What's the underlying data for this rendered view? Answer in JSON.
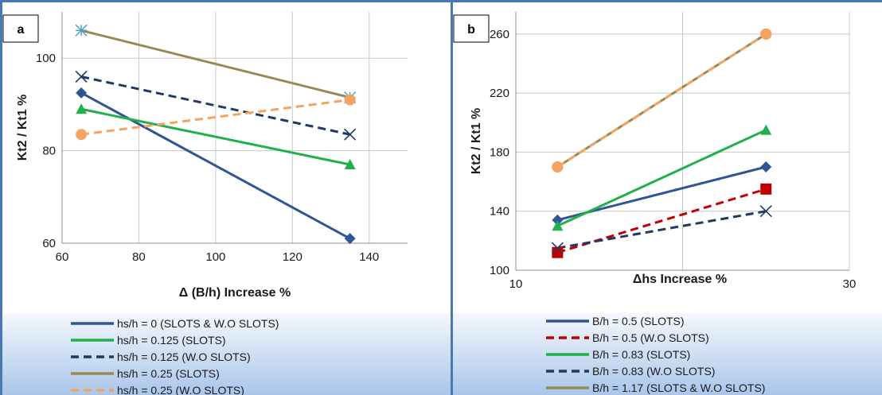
{
  "chart_data": [
    {
      "type": "line",
      "panel_label": "a",
      "xlabel": "Δ (B/h) Increase %",
      "ylabel": "Kt2 / Kt1 %",
      "xlim": [
        60,
        150
      ],
      "ylim": [
        60,
        110
      ],
      "xticks": [
        "60",
        "80",
        "100",
        "120",
        "140"
      ],
      "yticks": [
        "60",
        "80",
        "100"
      ],
      "grid": true,
      "legend_position": "bottom",
      "series": [
        {
          "name": "hs/h = 0 (SLOTS & W.O SLOTS)",
          "color": "#2f5597",
          "dash": "solid",
          "marker": "diamond",
          "x": [
            65,
            135
          ],
          "y": [
            92.5,
            61
          ]
        },
        {
          "name": "hs/h = 0.125 (SLOTS)",
          "color": "#1fb04c",
          "dash": "solid",
          "marker": "triangle",
          "x": [
            65,
            135
          ],
          "y": [
            89,
            77
          ]
        },
        {
          "name": "hs/h = 0.125 (W.O SLOTS)",
          "color": "#1f3864",
          "dash": "dashed",
          "marker": "x",
          "x": [
            65,
            135
          ],
          "y": [
            96,
            83.5
          ]
        },
        {
          "name": "hs/h = 0.25 (SLOTS)",
          "color": "#948a54",
          "dash": "solid",
          "marker": "asterisk",
          "x": [
            65,
            135
          ],
          "y": [
            106,
            91.5
          ]
        },
        {
          "name": "hs/h = 0.25 (W.O SLOTS)",
          "color": "#f4a460",
          "dash": "dashed",
          "marker": "circle",
          "x": [
            65,
            135
          ],
          "y": [
            83.5,
            91
          ]
        }
      ]
    },
    {
      "type": "line",
      "panel_label": "b",
      "xlabel": "Δhs Increase %",
      "ylabel": "Kt2 / Kt1 %",
      "xlim": [
        10,
        30
      ],
      "ylim": [
        100,
        275
      ],
      "xticks": [
        "10",
        "30"
      ],
      "yticks": [
        "100",
        "140",
        "180",
        "220",
        "260"
      ],
      "grid": true,
      "legend_position": "bottom",
      "series": [
        {
          "name": "B/h = 0.5 (SLOTS)",
          "color": "#2f5597",
          "dash": "solid",
          "marker": "diamond",
          "x": [
            12.5,
            25
          ],
          "y": [
            134,
            170
          ]
        },
        {
          "name": "B/h = 0.5 (W.O SLOTS)",
          "color": "#c00000",
          "dash": "dashed",
          "marker": "square",
          "x": [
            12.5,
            25
          ],
          "y": [
            112,
            155
          ]
        },
        {
          "name": "B/h = 0.83 (SLOTS)",
          "color": "#1fb04c",
          "dash": "solid",
          "marker": "triangle",
          "x": [
            12.5,
            25
          ],
          "y": [
            130,
            195
          ]
        },
        {
          "name": "B/h = 0.83 (W.O SLOTS)",
          "color": "#1f3864",
          "dash": "dashed",
          "marker": "x",
          "x": [
            12.5,
            25
          ],
          "y": [
            115,
            140
          ]
        },
        {
          "name": "B/h = 1.17 (SLOTS & W.O SLOTS)",
          "color": "#948a54",
          "dash": "solid",
          "marker": "circle",
          "x": [
            12.5,
            25
          ],
          "y": [
            170,
            260
          ]
        },
        {
          "name": "",
          "color": "#f4a460",
          "dash": "dashed",
          "marker": "circle",
          "x": [
            12.5,
            25
          ],
          "y": [
            170,
            260
          ]
        }
      ]
    }
  ]
}
